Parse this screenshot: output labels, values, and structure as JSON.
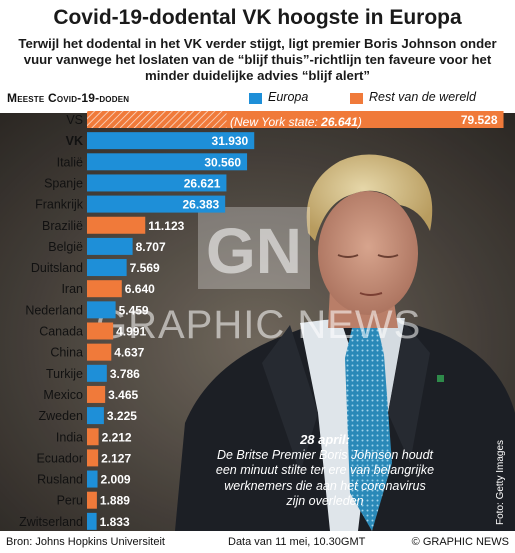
{
  "title": "Covid-19-dodental VK hoogste in Europa",
  "subtitle": "Terwijl het dodental in het VK verder stijgt, ligt premier Boris Johnson onder vuur vanwege het loslaten van de “blijf thuis”-richtlijn ten faveure voor het minder duidelijke advies “blijf alert”",
  "chart_heading": "Meeste Covid-19-doden",
  "legend": [
    {
      "label": "Europa",
      "color": "#1e8fd8"
    },
    {
      "label": "Rest van de wereld",
      "color": "#f07a3a"
    }
  ],
  "ny_note": {
    "prefix": "(New York state: ",
    "value": "26.641",
    "suffix": ")"
  },
  "caption": {
    "date": "28 april:",
    "text": "De Britse Premier Boris Johnson houdt een minuut stilte ter ere van belangrijke werknemers die aan het coronavirus zijn overleden"
  },
  "watermark": {
    "letters": "GN",
    "text": "GRAPHIC NEWS"
  },
  "photo_credit": "Foto: Getty Images",
  "footer": {
    "source": "Bron: Johns Hopkins Universiteit",
    "date": "Data van 11 mei, 10.30GMT",
    "brand": "© GRAPHIC NEWS"
  },
  "chart_data": {
    "type": "bar",
    "orientation": "horizontal",
    "title": "Meeste Covid-19-doden",
    "categories": [
      "VS",
      "VK",
      "Italië",
      "Spanje",
      "Frankrijk",
      "Brazilië",
      "België",
      "Duitsland",
      "Iran",
      "Nederland",
      "Canada",
      "China",
      "Turkije",
      "Mexico",
      "Zweden",
      "India",
      "Ecuador",
      "Rusland",
      "Peru",
      "Zwitserland"
    ],
    "values": [
      79528,
      31930,
      30560,
      26621,
      26383,
      11123,
      8707,
      7569,
      6640,
      5459,
      4991,
      4637,
      3786,
      3465,
      3225,
      2212,
      2127,
      2009,
      1889,
      1833
    ],
    "labels": [
      "79.528",
      "31.930",
      "30.560",
      "26.621",
      "26.383",
      "11.123",
      "8.707",
      "7.569",
      "6.640",
      "5.459",
      "4.991",
      "4.637",
      "3.786",
      "3.465",
      "3.225",
      "2.212",
      "2.127",
      "2.009",
      "1.889",
      "1.833"
    ],
    "region": [
      "world",
      "europe",
      "europe",
      "europe",
      "europe",
      "world",
      "europe",
      "europe",
      "world",
      "europe",
      "world",
      "world",
      "europe",
      "world",
      "europe",
      "world",
      "world",
      "europe",
      "world",
      "europe"
    ],
    "series": [
      {
        "name": "Europa",
        "color": "#1e8fd8"
      },
      {
        "name": "Rest van de wereld",
        "color": "#f07a3a"
      }
    ],
    "bold_categories": [
      "VK"
    ],
    "hatched_segment": {
      "category": "VS",
      "value": 26641
    },
    "xlim": [
      0,
      80000
    ],
    "grid": false,
    "legend_position": "top"
  }
}
